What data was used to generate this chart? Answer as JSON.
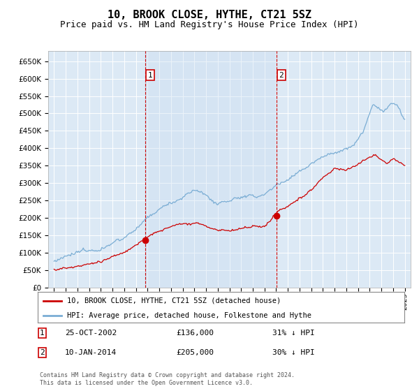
{
  "title": "10, BROOK CLOSE, HYTHE, CT21 5SZ",
  "subtitle": "Price paid vs. HM Land Registry's House Price Index (HPI)",
  "title_fontsize": 11,
  "subtitle_fontsize": 9,
  "background_color": "#ffffff",
  "plot_bg_color": "#dce9f5",
  "shade_color": "#c8ddf0",
  "grid_color": "#ffffff",
  "red_line_color": "#cc0000",
  "blue_line_color": "#7aadd4",
  "sale1_x": 2002.82,
  "sale1_y": 136000,
  "sale1_label": "1",
  "sale2_x": 2014.04,
  "sale2_y": 205000,
  "sale2_label": "2",
  "ylim": [
    0,
    680000
  ],
  "xlim": [
    1994.5,
    2025.5
  ],
  "yticks": [
    0,
    50000,
    100000,
    150000,
    200000,
    250000,
    300000,
    350000,
    400000,
    450000,
    500000,
    550000,
    600000,
    650000
  ],
  "ytick_labels": [
    "£0",
    "£50K",
    "£100K",
    "£150K",
    "£200K",
    "£250K",
    "£300K",
    "£350K",
    "£400K",
    "£450K",
    "£500K",
    "£550K",
    "£600K",
    "£650K"
  ],
  "xtick_years": [
    1995,
    1996,
    1997,
    1998,
    1999,
    2000,
    2001,
    2002,
    2003,
    2004,
    2005,
    2006,
    2007,
    2008,
    2009,
    2010,
    2011,
    2012,
    2013,
    2014,
    2015,
    2016,
    2017,
    2018,
    2019,
    2020,
    2021,
    2022,
    2023,
    2024,
    2025
  ],
  "legend_red": "10, BROOK CLOSE, HYTHE, CT21 5SZ (detached house)",
  "legend_blue": "HPI: Average price, detached house, Folkestone and Hythe",
  "note1_label": "1",
  "note1_date": "25-OCT-2002",
  "note1_price": "£136,000",
  "note1_hpi": "31% ↓ HPI",
  "note2_label": "2",
  "note2_date": "10-JAN-2014",
  "note2_price": "£205,000",
  "note2_hpi": "30% ↓ HPI",
  "footer": "Contains HM Land Registry data © Crown copyright and database right 2024.\nThis data is licensed under the Open Government Licence v3.0."
}
